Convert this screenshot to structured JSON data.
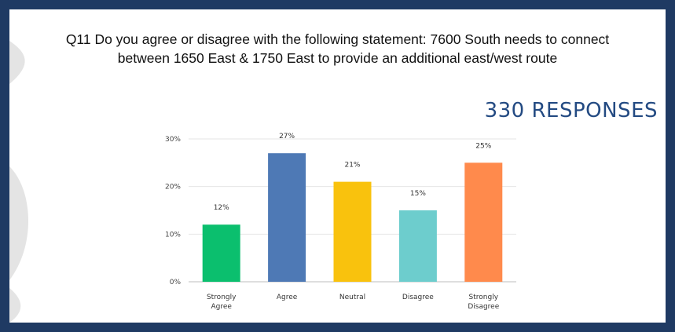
{
  "question": {
    "line1": "Q11 Do you agree or disagree with the following statement: 7600 South needs to connect",
    "line2": "between 1650 East & 1750 East to provide an additional east/west route"
  },
  "responses_label": "330 RESPONSES",
  "colors": {
    "frame": "#1f3a63",
    "responses_text": "#234a82"
  },
  "chart_data": {
    "type": "bar",
    "categories": [
      "Strongly Agree",
      "Agree",
      "Neutral",
      "Disagree",
      "Strongly Disagree"
    ],
    "category_lines": [
      [
        "Strongly",
        "Agree"
      ],
      [
        "Agree"
      ],
      [
        "Neutral"
      ],
      [
        "Disagree"
      ],
      [
        "Strongly",
        "Disagree"
      ]
    ],
    "values": [
      12,
      27,
      21,
      15,
      25
    ],
    "value_labels": [
      "12%",
      "27%",
      "21%",
      "15%",
      "25%"
    ],
    "colors": [
      "#0bbf6e",
      "#4e79b5",
      "#f9c20d",
      "#6dcdcd",
      "#ff8a4c"
    ],
    "yticks": [
      0,
      10,
      20,
      30
    ],
    "ytick_labels": [
      "0%",
      "10%",
      "20%",
      "30%"
    ],
    "ylim": [
      0,
      30
    ],
    "grid": true,
    "title": "",
    "xlabel": "",
    "ylabel": ""
  }
}
